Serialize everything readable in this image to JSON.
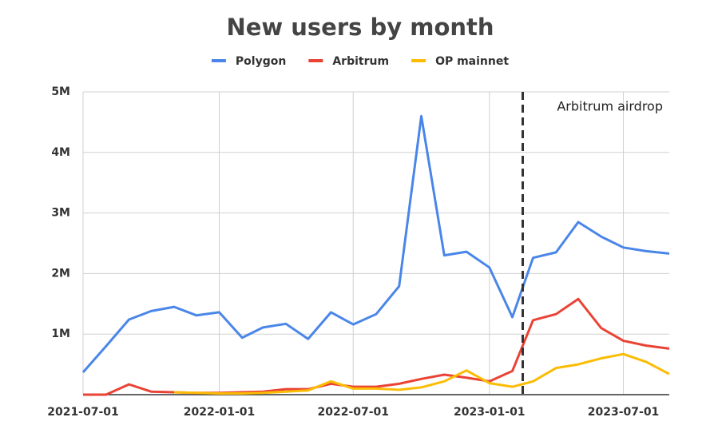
{
  "chart_data": {
    "type": "line",
    "title": "New users by month",
    "x": [
      "2021-07-01",
      "2021-08-01",
      "2021-09-01",
      "2021-10-01",
      "2021-11-01",
      "2021-12-01",
      "2022-01-01",
      "2022-02-01",
      "2022-03-01",
      "2022-04-01",
      "2022-05-01",
      "2022-06-01",
      "2022-07-01",
      "2022-08-01",
      "2022-09-01",
      "2022-10-01",
      "2022-11-01",
      "2022-12-01",
      "2023-01-01",
      "2023-02-01",
      "2023-03-01",
      "2023-04-01",
      "2023-05-01",
      "2023-06-01",
      "2023-07-01",
      "2023-08-01",
      "2023-09-01"
    ],
    "series": [
      {
        "name": "Polygon",
        "color": "#4a86e8",
        "values": [
          370000,
          800000,
          1240000,
          1380000,
          1450000,
          1310000,
          1360000,
          940000,
          1110000,
          1170000,
          920000,
          1360000,
          1160000,
          1330000,
          1790000,
          4600000,
          2300000,
          2360000,
          2100000,
          1280000,
          2260000,
          2350000,
          2850000,
          2610000,
          2430000,
          2370000,
          2330000
        ]
      },
      {
        "name": "Arbitrum",
        "color": "#ea4335",
        "values": [
          0,
          0,
          170000,
          50000,
          40000,
          30000,
          30000,
          40000,
          50000,
          90000,
          90000,
          180000,
          130000,
          130000,
          180000,
          260000,
          330000,
          280000,
          220000,
          390000,
          1230000,
          1330000,
          1580000,
          1100000,
          890000,
          810000,
          760000
        ]
      },
      {
        "name": "OP mainnet",
        "color": "#fbbc04",
        "values": [
          null,
          null,
          null,
          null,
          40000,
          30000,
          20000,
          20000,
          30000,
          50000,
          70000,
          220000,
          100000,
          100000,
          80000,
          120000,
          220000,
          400000,
          190000,
          130000,
          220000,
          440000,
          500000,
          600000,
          670000,
          540000,
          340000
        ]
      }
    ],
    "xlim": [
      "2021-07-01",
      "2023-09-01"
    ],
    "xticks": [
      "2021-07-01",
      "2022-01-01",
      "2022-07-01",
      "2023-01-01",
      "2023-07-01"
    ],
    "ylim": [
      0,
      5000000
    ],
    "yticks": [
      {
        "value": 1000000,
        "label": "1M"
      },
      {
        "value": 2000000,
        "label": "2M"
      },
      {
        "value": 3000000,
        "label": "3M"
      },
      {
        "value": 4000000,
        "label": "4M"
      },
      {
        "value": 5000000,
        "label": "5M"
      }
    ],
    "grid": true,
    "legend": "top",
    "annotation": {
      "text": "Arbitrum airdrop",
      "x": "2023-02-15"
    }
  }
}
